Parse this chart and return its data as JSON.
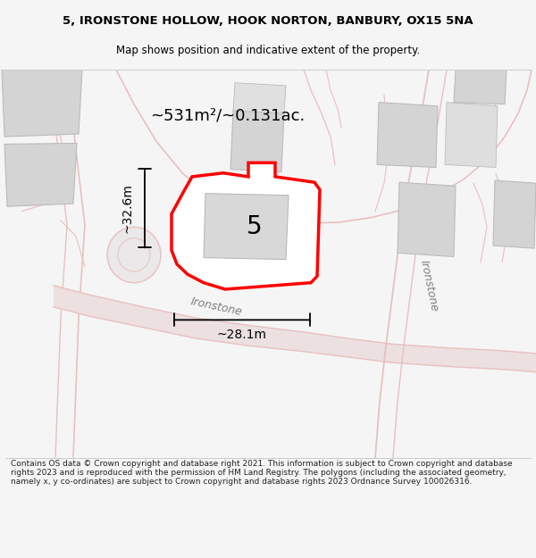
{
  "title_line1": "5, IRONSTONE HOLLOW, HOOK NORTON, BANBURY, OX15 5NA",
  "title_line2": "Map shows position and indicative extent of the property.",
  "area_text": "~531m²/~0.131ac.",
  "dim_width": "~28.1m",
  "dim_height": "~32.6m",
  "plot_number": "5",
  "street_name1": "Ironstone",
  "street_name2": "Ironstone",
  "footer_text": "Contains OS data © Crown copyright and database right 2021. This information is subject to Crown copyright and database rights 2023 and is reproduced with the permission of HM Land Registry. The polygons (including the associated geometry, namely x, y co-ordinates) are subject to Crown copyright and database rights 2023 Ordnance Survey 100026316.",
  "bg_color": "#f5f5f5",
  "map_bg": "#eeecec",
  "plot_fill": "#ffffff",
  "plot_outline": "#ff0000",
  "road_color": "#e8c0c0",
  "building_color": "#d4d4d4",
  "building_outline": "#bbbbbb",
  "dim_line_color": "#000000",
  "text_color": "#000000",
  "footer_color": "#222222"
}
